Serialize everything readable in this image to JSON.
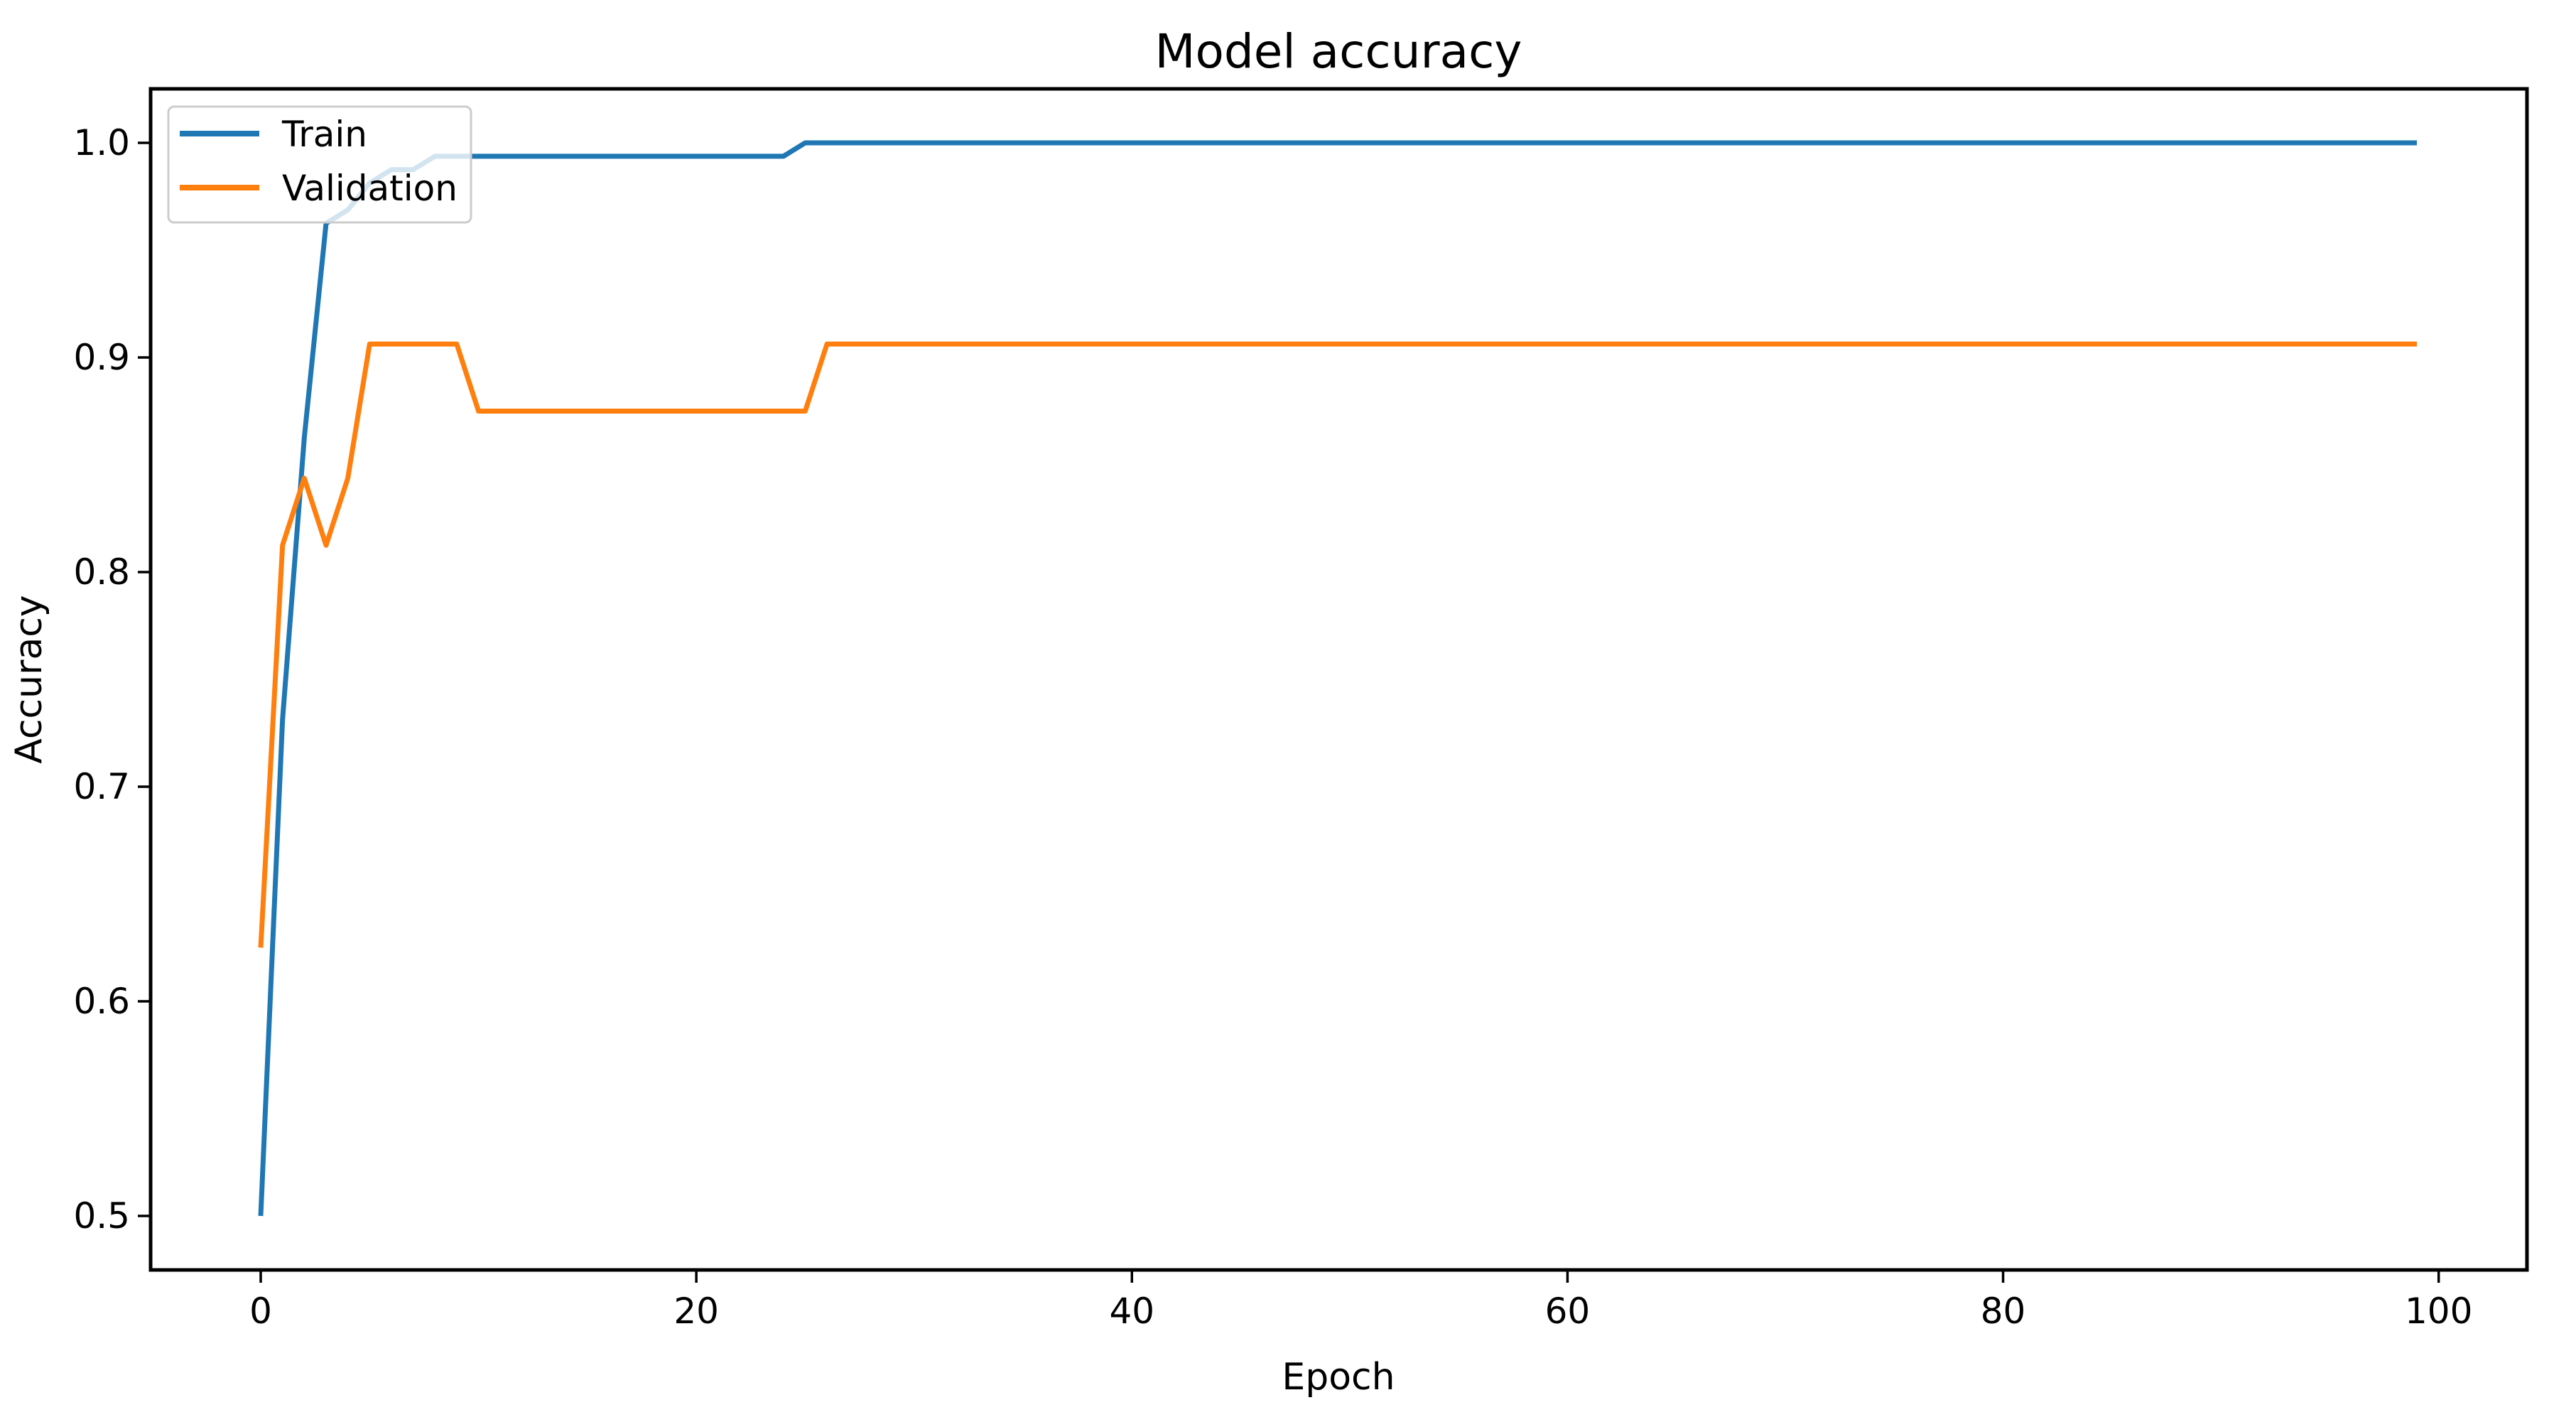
{
  "figure": {
    "background_color": "#ffffff",
    "spine_color": "#000000",
    "text_color": "#000000"
  },
  "chart_data": {
    "type": "line",
    "title": "Model accuracy",
    "xlabel": "Epoch",
    "ylabel": "Accuracy",
    "x_ticks": [
      0,
      20,
      40,
      60,
      80,
      100
    ],
    "y_ticks": [
      0.5,
      0.6,
      0.7,
      0.8,
      0.9,
      1.0
    ],
    "xlim": [
      -4.95,
      103.95
    ],
    "ylim": [
      0.475,
      1.025
    ],
    "grid": false,
    "legend": {
      "position": "upper left",
      "border_color": "#cccccc",
      "background_color": "rgba(255,255,255,0.8)",
      "entries": [
        "Train",
        "Validation"
      ]
    },
    "x_start_epoch": 0,
    "n_points": 100,
    "series": [
      {
        "name": "Train",
        "color": "#1f77b4",
        "values": [
          0.5,
          0.73125,
          0.8625,
          0.9625,
          0.96875,
          0.98125,
          0.9875,
          0.9875,
          0.99375,
          0.99375,
          0.99375,
          0.99375,
          0.99375,
          0.99375,
          0.99375,
          0.99375,
          0.99375,
          0.99375,
          0.99375,
          0.99375,
          0.99375,
          0.99375,
          0.99375,
          0.99375,
          0.99375,
          1.0,
          1.0,
          1.0,
          1.0,
          1.0,
          1.0,
          1.0,
          1.0,
          1.0,
          1.0,
          1.0,
          1.0,
          1.0,
          1.0,
          1.0,
          1.0,
          1.0,
          1.0,
          1.0,
          1.0,
          1.0,
          1.0,
          1.0,
          1.0,
          1.0,
          1.0,
          1.0,
          1.0,
          1.0,
          1.0,
          1.0,
          1.0,
          1.0,
          1.0,
          1.0,
          1.0,
          1.0,
          1.0,
          1.0,
          1.0,
          1.0,
          1.0,
          1.0,
          1.0,
          1.0,
          1.0,
          1.0,
          1.0,
          1.0,
          1.0,
          1.0,
          1.0,
          1.0,
          1.0,
          1.0,
          1.0,
          1.0,
          1.0,
          1.0,
          1.0,
          1.0,
          1.0,
          1.0,
          1.0,
          1.0,
          1.0,
          1.0,
          1.0,
          1.0,
          1.0,
          1.0,
          1.0,
          1.0,
          1.0,
          1.0
        ]
      },
      {
        "name": "Validation",
        "color": "#ff7f0e",
        "values": [
          0.625,
          0.8125,
          0.84375,
          0.8125,
          0.84375,
          0.90625,
          0.90625,
          0.90625,
          0.90625,
          0.90625,
          0.875,
          0.875,
          0.875,
          0.875,
          0.875,
          0.875,
          0.875,
          0.875,
          0.875,
          0.875,
          0.875,
          0.875,
          0.875,
          0.875,
          0.875,
          0.875,
          0.90625,
          0.90625,
          0.90625,
          0.90625,
          0.90625,
          0.90625,
          0.90625,
          0.90625,
          0.90625,
          0.90625,
          0.90625,
          0.90625,
          0.90625,
          0.90625,
          0.90625,
          0.90625,
          0.90625,
          0.90625,
          0.90625,
          0.90625,
          0.90625,
          0.90625,
          0.90625,
          0.90625,
          0.90625,
          0.90625,
          0.90625,
          0.90625,
          0.90625,
          0.90625,
          0.90625,
          0.90625,
          0.90625,
          0.90625,
          0.90625,
          0.90625,
          0.90625,
          0.90625,
          0.90625,
          0.90625,
          0.90625,
          0.90625,
          0.90625,
          0.90625,
          0.90625,
          0.90625,
          0.90625,
          0.90625,
          0.90625,
          0.90625,
          0.90625,
          0.90625,
          0.90625,
          0.90625,
          0.90625,
          0.90625,
          0.90625,
          0.90625,
          0.90625,
          0.90625,
          0.90625,
          0.90625,
          0.90625,
          0.90625,
          0.90625,
          0.90625,
          0.90625,
          0.90625,
          0.90625,
          0.90625,
          0.90625,
          0.90625,
          0.90625,
          0.90625
        ]
      }
    ]
  }
}
